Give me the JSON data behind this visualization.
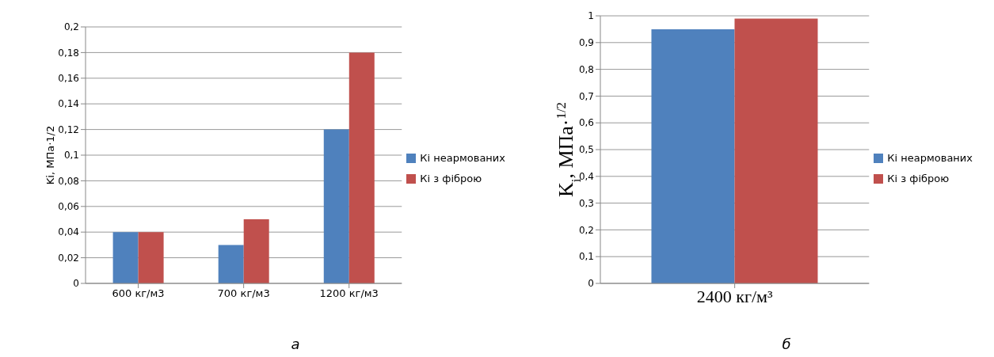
{
  "chart_data": [
    {
      "type": "bar",
      "categories": [
        "600 кг/м3",
        "700 кг/м3",
        "1200 кг/м3"
      ],
      "ylabel": "Ki, МПа·1/2",
      "series": [
        {
          "name": "Кі неармованих",
          "color": "#4f81bd",
          "values": [
            0.04,
            0.03,
            0.12
          ]
        },
        {
          "name": "Кі з фіброю",
          "color": "#c0504d",
          "values": [
            0.04,
            0.05,
            0.18
          ]
        }
      ],
      "ylim": [
        0,
        0.2
      ],
      "yticks": [
        {
          "value": 0,
          "label": "0"
        },
        {
          "value": 0.02,
          "label": "0,02"
        },
        {
          "value": 0.04,
          "label": "0,04"
        },
        {
          "value": 0.06,
          "label": "0,06"
        },
        {
          "value": 0.08,
          "label": "0,08"
        },
        {
          "value": 0.1,
          "label": "0,1"
        },
        {
          "value": 0.12,
          "label": "0,12"
        },
        {
          "value": 0.14,
          "label": "0,14"
        },
        {
          "value": 0.16,
          "label": "0,16"
        },
        {
          "value": 0.18,
          "label": "0,18"
        },
        {
          "value": 0.2,
          "label": "0,2"
        }
      ],
      "grid": "y",
      "legend": "right",
      "annotations": [
        "а"
      ]
    },
    {
      "type": "bar",
      "categories": [
        "2400  кг/м³"
      ],
      "ylabel": "K$_{i}$, МПа·$^{1/2}$",
      "series": [
        {
          "name": "Кі неармованих",
          "color": "#4f81bd",
          "values": [
            0.95
          ]
        },
        {
          "name": "Кі з фіброю",
          "color": "#c0504d",
          "values": [
            0.99
          ]
        }
      ],
      "ylim": [
        0,
        1
      ],
      "yticks": [
        {
          "value": 0,
          "label": "0"
        },
        {
          "value": 0.1,
          "label": "0,1"
        },
        {
          "value": 0.2,
          "label": "0,2"
        },
        {
          "value": 0.3,
          "label": "0,3"
        },
        {
          "value": 0.4,
          "label": "0,4"
        },
        {
          "value": 0.5,
          "label": "0,5"
        },
        {
          "value": 0.6,
          "label": "0,6"
        },
        {
          "value": 0.7,
          "label": "0,7"
        },
        {
          "value": 0.8,
          "label": "0,8"
        },
        {
          "value": 0.9,
          "label": "0,9"
        },
        {
          "value": 1,
          "label": "1"
        }
      ],
      "grid": "y",
      "legend": "right",
      "annotations": [
        "б"
      ]
    }
  ]
}
